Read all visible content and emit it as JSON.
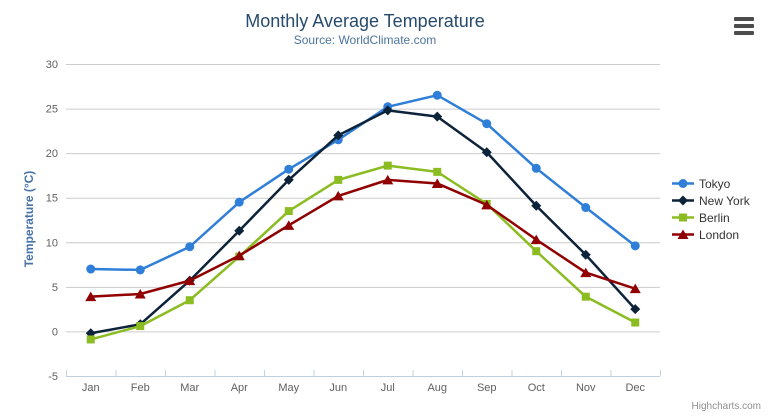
{
  "chart": {
    "title": "Monthly Average Temperature",
    "subtitle": "Source: WorldClimate.com",
    "credits": "Highcharts.com",
    "menu_icon": "hamburger-menu-icon"
  },
  "chart_data": {
    "type": "line",
    "title": "Monthly Average Temperature",
    "subtitle": "Source: WorldClimate.com",
    "categories": [
      "Jan",
      "Feb",
      "Mar",
      "Apr",
      "May",
      "Jun",
      "Jul",
      "Aug",
      "Sep",
      "Oct",
      "Nov",
      "Dec"
    ],
    "xlabel": "",
    "ylabel": "Temperature (°C)",
    "ylim": [
      -5,
      30
    ],
    "ytick_step": 5,
    "grid": true,
    "legend_position": "right-middle",
    "series": [
      {
        "name": "Tokyo",
        "color": "#2f7ed8",
        "marker": "circle",
        "values": [
          7.0,
          6.9,
          9.5,
          14.5,
          18.2,
          21.5,
          25.2,
          26.5,
          23.3,
          18.3,
          13.9,
          9.6
        ]
      },
      {
        "name": "New York",
        "color": "#0d233a",
        "marker": "diamond",
        "values": [
          -0.2,
          0.8,
          5.7,
          11.3,
          17.0,
          22.0,
          24.8,
          24.1,
          20.1,
          14.1,
          8.6,
          2.5
        ]
      },
      {
        "name": "Berlin",
        "color": "#8bbc21",
        "marker": "square",
        "values": [
          -0.9,
          0.6,
          3.5,
          8.4,
          13.5,
          17.0,
          18.6,
          17.9,
          14.3,
          9.0,
          3.9,
          1.0
        ]
      },
      {
        "name": "London",
        "color": "#910000",
        "marker": "triangle",
        "values": [
          3.9,
          4.2,
          5.7,
          8.5,
          11.9,
          15.2,
          17.0,
          16.6,
          14.2,
          10.3,
          6.6,
          4.8
        ]
      }
    ],
    "colors": {
      "title": "#274b6d",
      "subtitle": "#4d759e",
      "axis_label": "#606060",
      "yaxis_title": "#4572a7",
      "grid": "#cccccc",
      "axis_line": "#c0d0e0",
      "legend_text": "#333333",
      "credits": "#8f8f8f"
    }
  }
}
